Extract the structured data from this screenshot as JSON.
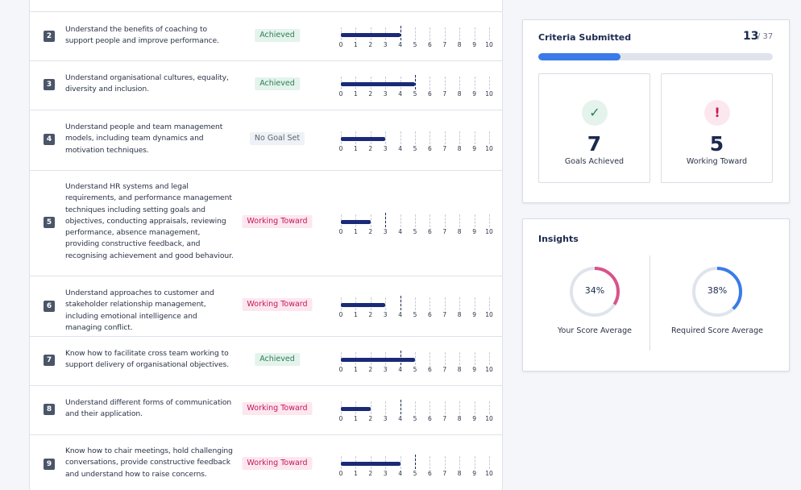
{
  "scale": {
    "ticks": [
      "0",
      "1",
      "2",
      "3",
      "4",
      "5",
      "6",
      "7",
      "8",
      "9",
      "10"
    ]
  },
  "criteria": [
    {
      "number": "2",
      "text": "Understand the benefits of coaching to support people and improve performance.",
      "status": "Achieved",
      "status_type": "achieved",
      "score": 4,
      "target": 4
    },
    {
      "number": "3",
      "text": "Understand organisational cultures, equality, diversity and inclusion.",
      "status": "Achieved",
      "status_type": "achieved",
      "score": 5,
      "target": 5
    },
    {
      "number": "4",
      "text": "Understand people and team management models, including team dynamics and motivation techniques.",
      "status": "No Goal Set",
      "status_type": "nogoal",
      "score": 3,
      "target": null
    },
    {
      "number": "5",
      "text": "Understand HR systems and legal requirements, and performance management techniques including setting goals and objectives, conducting appraisals, reviewing performance, absence management, providing constructive feedback, and recognising achievement and good behaviour.",
      "status": "Working Toward",
      "status_type": "working",
      "score": 2,
      "target": 3
    },
    {
      "number": "6",
      "text": "Understand approaches to customer and stakeholder relationship management, including emotional intelligence and managing conflict.",
      "status": "Working Toward",
      "status_type": "working",
      "score": 3,
      "target": 4
    },
    {
      "number": "7",
      "text": "Know how to facilitate cross team working to support delivery of organisational objectives.",
      "status": "Achieved",
      "status_type": "achieved",
      "score": 5,
      "target": 4
    },
    {
      "number": "8",
      "text": "Understand different forms of communication and their application.",
      "status": "Working Toward",
      "status_type": "working",
      "score": 2,
      "target": 4
    },
    {
      "number": "9",
      "text": "Know how to chair meetings, hold challenging conversations, provide constructive feedback and understand how to raise concerns.",
      "status": "Working Toward",
      "status_type": "working",
      "score": 4,
      "target": 5
    }
  ],
  "summary": {
    "title": "Criteria Submitted",
    "submitted": "13",
    "total": "/ 37",
    "progress_fraction": 0.351,
    "achieved_value": "7",
    "achieved_label": "Goals Achieved",
    "achieved_icon": "check-icon",
    "working_value": "5",
    "working_label": "Working Toward",
    "working_icon": "alert-icon",
    "colors": {
      "progress": "#3a7be8",
      "achieved": "#2e7d55",
      "working": "#c2185b"
    }
  },
  "insights": {
    "title": "Insights",
    "your_score": {
      "text": "34%",
      "fraction": 0.34,
      "label": "Your Score Average",
      "color": "#d9538a"
    },
    "required_score": {
      "text": "38%",
      "fraction": 0.38,
      "label": "Required Score Average",
      "color": "#3a7be8"
    }
  }
}
